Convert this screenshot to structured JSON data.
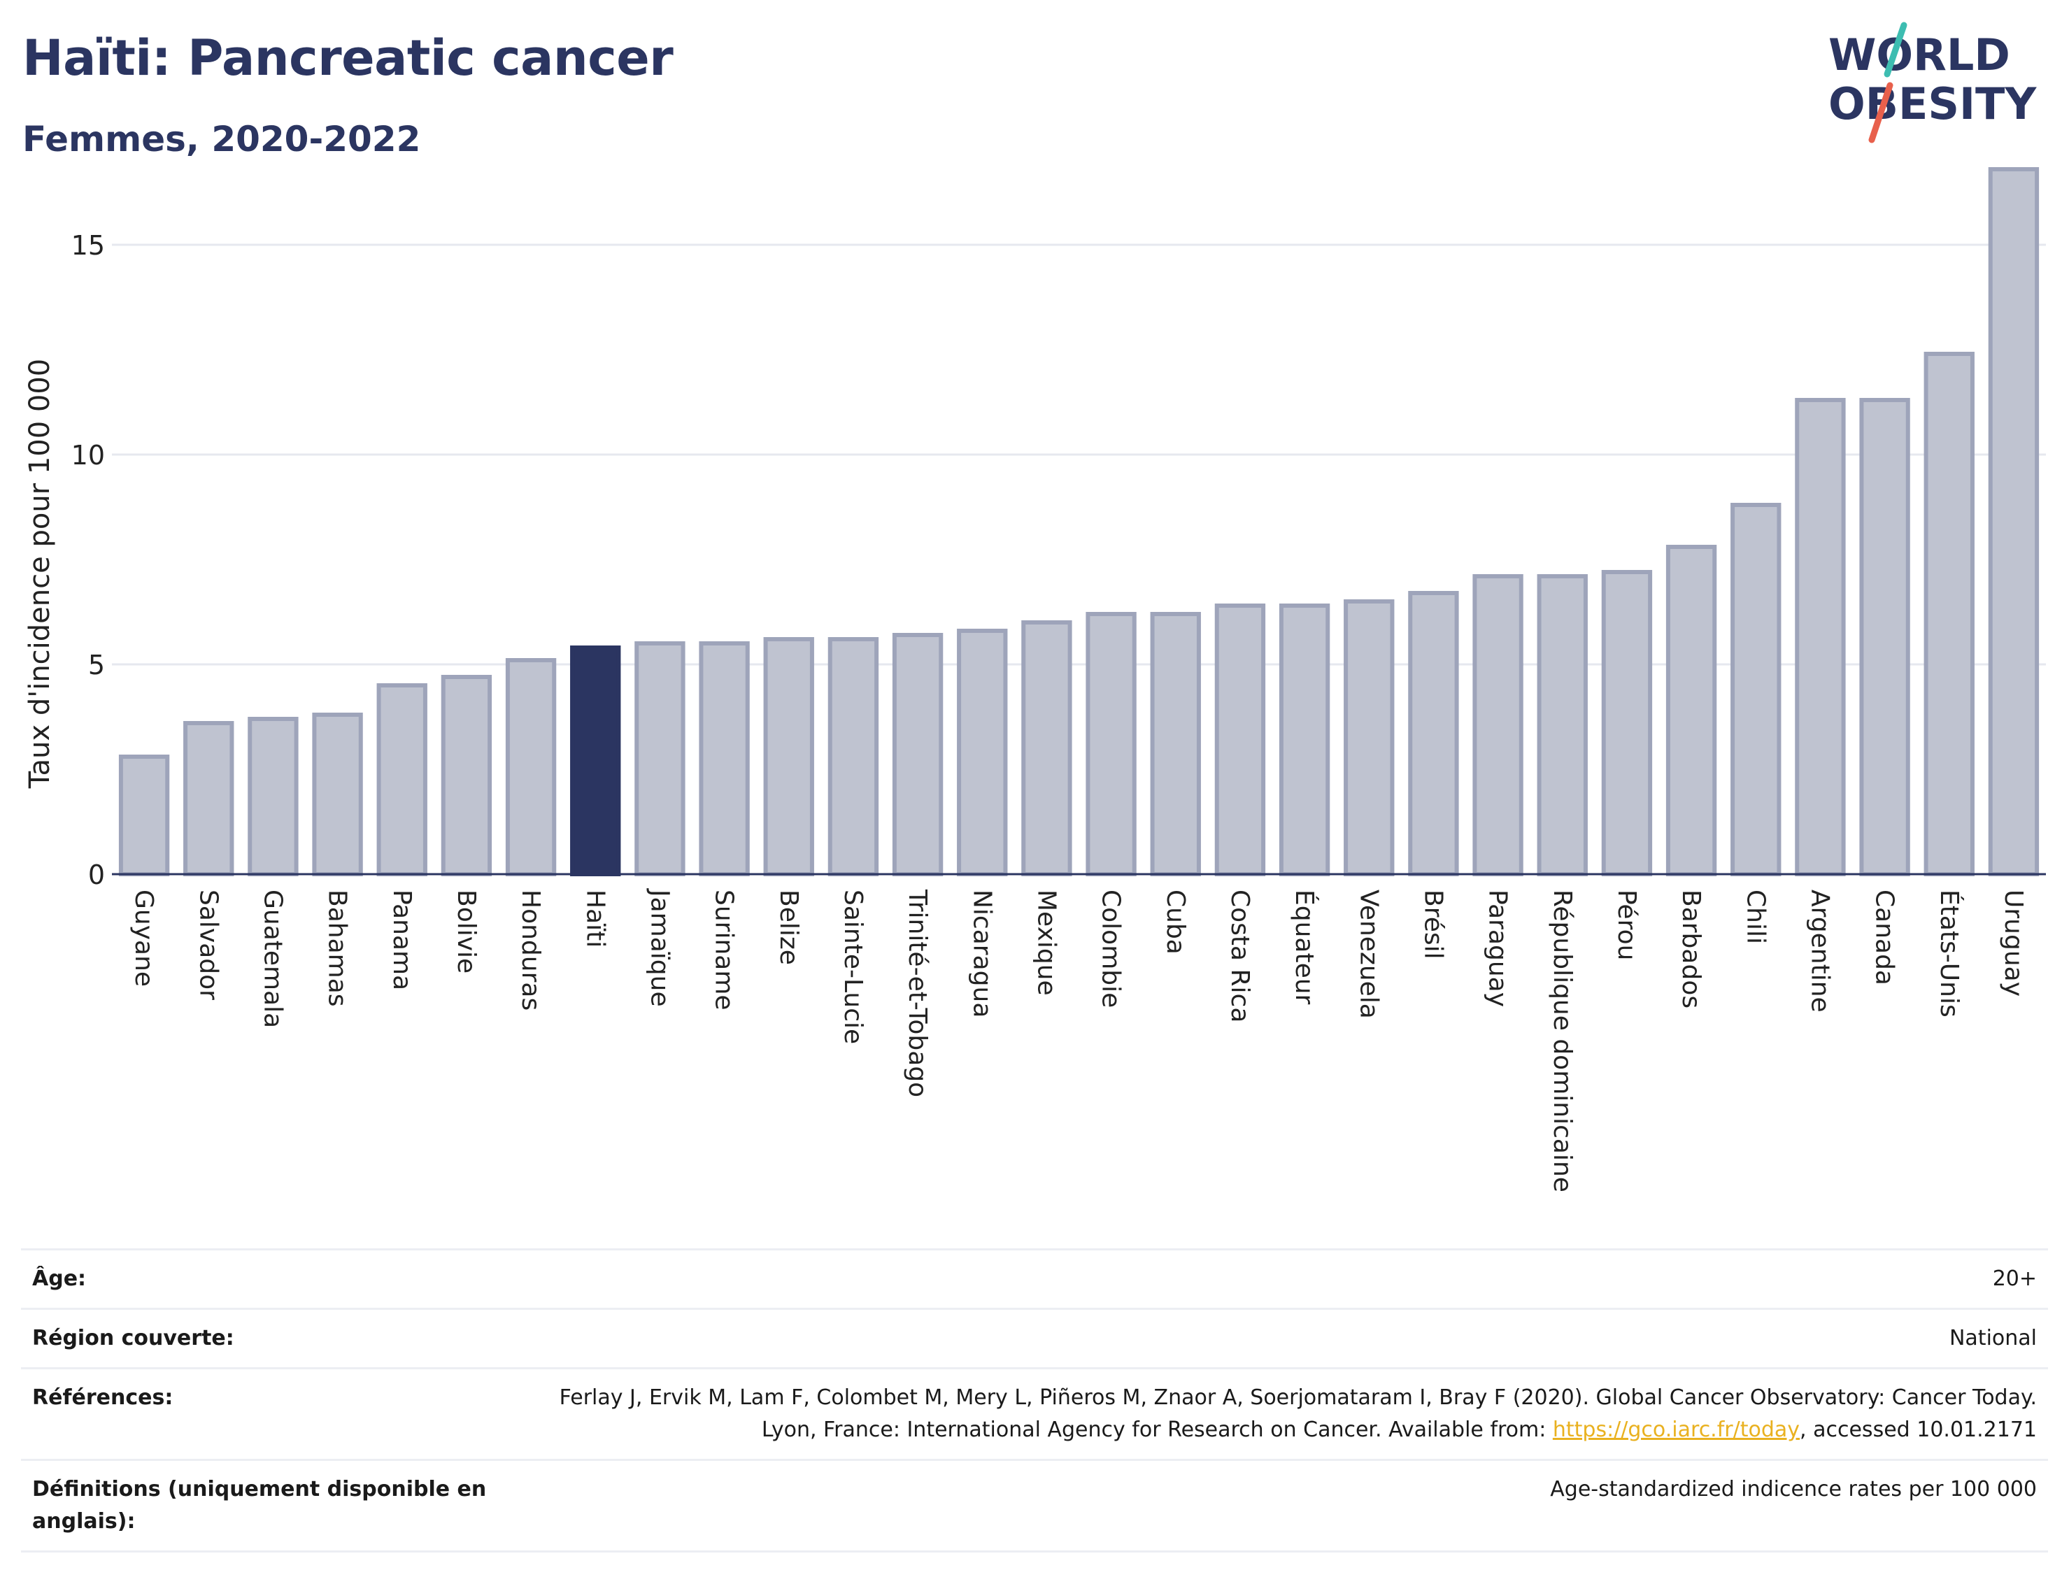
{
  "header": {
    "title": "Haïti: Pancreatic cancer",
    "subtitle": "Femmes, 2020-2022"
  },
  "logo": {
    "line1": "WORLD",
    "line2": "OBESITY",
    "colors": {
      "text": "#2b3561",
      "slash_red": "#e8604c",
      "slash_teal": "#3dbdb1"
    }
  },
  "colors": {
    "bar_default": "#bfc3d0",
    "bar_border": "#9ea4ba",
    "bar_highlight": "#2b3561",
    "grid": "#e6e8ef",
    "axis": "#2b3561"
  },
  "chart_data": {
    "type": "bar",
    "ylabel": "Taux d'incidence pour 100 000",
    "xlabel": "",
    "ylim": [
      0,
      17
    ],
    "yticks": [
      0,
      5,
      10,
      15
    ],
    "grid": true,
    "highlight": "Haïti",
    "categories": [
      "Guyane",
      "Salvador",
      "Guatemala",
      "Bahamas",
      "Panama",
      "Bolivie",
      "Honduras",
      "Haïti",
      "Jamaïque",
      "Suriname",
      "Belize",
      "Sainte-Lucie",
      "Trinité-et-Tobago",
      "Nicaragua",
      "Mexique",
      "Colombie",
      "Cuba",
      "Costa Rica",
      "Équateur",
      "Venezuela",
      "Brésil",
      "Paraguay",
      "République dominicaine",
      "Pérou",
      "Barbados",
      "Chili",
      "Argentine",
      "Canada",
      "États-Unis",
      "Uruguay"
    ],
    "values": [
      2.8,
      3.6,
      3.7,
      3.8,
      4.5,
      4.7,
      5.1,
      5.4,
      5.5,
      5.5,
      5.6,
      5.6,
      5.7,
      5.8,
      6.0,
      6.2,
      6.2,
      6.4,
      6.4,
      6.5,
      6.7,
      7.1,
      7.1,
      7.2,
      7.8,
      8.8,
      11.3,
      11.3,
      12.4,
      16.8
    ]
  },
  "meta": {
    "age_label": "Âge:",
    "age_value": "20+",
    "region_label": "Région couverte:",
    "region_value": "National",
    "refs_label": "Références:",
    "refs_text_1": "Ferlay J, Ervik M, Lam F, Colombet M, Mery L, Piñeros M, Znaor A, Soerjomataram I, Bray F (2020). Global Cancer Observatory: Cancer Today. Lyon, France: International Agency for Research on Cancer. Available from: ",
    "refs_link": "https://gco.iarc.fr/today",
    "refs_text_2": ", accessed 10.01.2171",
    "defs_label": "Définitions (uniquement disponible en anglais):",
    "defs_value": "Age-standardized indicence rates per 100 000"
  }
}
